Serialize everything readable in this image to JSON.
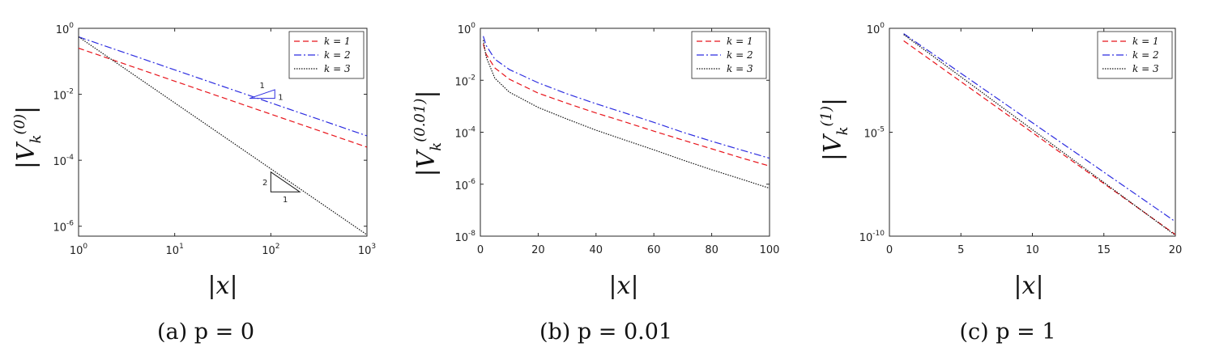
{
  "chart_data": [
    {
      "type": "line",
      "caption": "(a) p = 0",
      "xlabel": "|x|",
      "ylabel": "|V_k^{(0)}|",
      "ylabel_base": "|V",
      "ylabel_sub": "k",
      "ylabel_sup": "(0)",
      "xscale": "log",
      "yscale": "log",
      "xlim": [
        1,
        1000
      ],
      "ylim": [
        5e-07,
        1
      ],
      "xticks": [
        1,
        10,
        100,
        1000
      ],
      "xtick_labels": [
        {
          "base": "10",
          "exp": "0"
        },
        {
          "base": "10",
          "exp": "1"
        },
        {
          "base": "10",
          "exp": "2"
        },
        {
          "base": "10",
          "exp": "3"
        }
      ],
      "yticks": [
        1e-06,
        0.0001,
        0.01,
        1
      ],
      "ytick_labels": [
        {
          "base": "10",
          "exp": "-6"
        },
        {
          "base": "10",
          "exp": "-4"
        },
        {
          "base": "10",
          "exp": "-2"
        },
        {
          "base": "10",
          "exp": "0"
        }
      ],
      "legend": "top-right",
      "series": [
        {
          "name": "k = 1",
          "color": "#e8141b",
          "dash": "7,4",
          "x": [
            1,
            1000
          ],
          "y": [
            0.25,
            0.00025
          ]
        },
        {
          "name": "k = 2",
          "color": "#2c2ce0",
          "dash": "9,3,2,3",
          "x": [
            1,
            1000
          ],
          "y": [
            0.55,
            0.00055
          ]
        },
        {
          "name": "k = 3",
          "color": "#111111",
          "dash": "1.5,1.5",
          "x": [
            1,
            1000
          ],
          "y": [
            0.55,
            5.5e-07
          ]
        }
      ],
      "slope_triangles": [
        {
          "color": "#2c2ce0",
          "rise_label": "1",
          "run_label": "1",
          "x0": 60,
          "x1": 110,
          "y": 0.0075
        },
        {
          "color": "#111111",
          "rise_label": "2",
          "run_label": "1",
          "x0": 100,
          "x1": 200,
          "y": 1.1e-05
        }
      ]
    },
    {
      "type": "line",
      "caption": "(b) p = 0.01",
      "xlabel": "|x|",
      "ylabel": "|V_k^{(0.01)}|",
      "ylabel_base": "|V",
      "ylabel_sub": "k",
      "ylabel_sup": "(0.01)",
      "xscale": "linear",
      "yscale": "log",
      "xlim": [
        0,
        100
      ],
      "ylim": [
        1e-08,
        1
      ],
      "xticks": [
        0,
        20,
        40,
        60,
        80,
        100
      ],
      "xtick_labels": [
        "0",
        "20",
        "40",
        "60",
        "80",
        "100"
      ],
      "yticks": [
        1e-08,
        1e-06,
        0.0001,
        0.01,
        1
      ],
      "ytick_labels": [
        {
          "base": "10",
          "exp": "-8"
        },
        {
          "base": "10",
          "exp": "-6"
        },
        {
          "base": "10",
          "exp": "-4"
        },
        {
          "base": "10",
          "exp": "-2"
        },
        {
          "base": "10",
          "exp": "0"
        }
      ],
      "legend": "top-right",
      "series": [
        {
          "name": "k = 1",
          "color": "#e8141b",
          "dash": "7,4",
          "x": [
            1,
            2,
            5,
            10,
            20,
            30,
            40,
            50,
            60,
            70,
            80,
            90,
            100
          ],
          "y": [
            0.25,
            0.1,
            0.03,
            0.011,
            0.0032,
            0.0013,
            0.00055,
            0.00025,
            0.00011,
            5e-05,
            2.3e-05,
            1.05e-05,
            5e-06
          ]
        },
        {
          "name": "k = 2",
          "color": "#2c2ce0",
          "dash": "9,3,2,3",
          "x": [
            1,
            2,
            5,
            10,
            20,
            30,
            40,
            50,
            60,
            70,
            80,
            90,
            100
          ],
          "y": [
            0.5,
            0.22,
            0.065,
            0.026,
            0.008,
            0.003,
            0.00125,
            0.00055,
            0.00024,
            0.0001,
            4.5e-05,
            2.1e-05,
            1e-05
          ]
        },
        {
          "name": "k = 3",
          "color": "#111111",
          "dash": "1.5,1.5",
          "x": [
            1,
            2,
            5,
            10,
            20,
            30,
            40,
            50,
            60,
            70,
            80,
            90,
            100
          ],
          "y": [
            0.35,
            0.08,
            0.012,
            0.0035,
            0.0009,
            0.00032,
            0.00012,
            5e-05,
            2.1e-05,
            8.5e-06,
            3.6e-06,
            1.6e-06,
            7e-07
          ]
        }
      ]
    },
    {
      "type": "line",
      "caption": "(c) p = 1",
      "xlabel": "|x|",
      "ylabel": "|V_k^{(1)}|",
      "ylabel_base": "|V",
      "ylabel_sub": "k",
      "ylabel_sup": "(1)",
      "xscale": "linear",
      "yscale": "log",
      "xlim": [
        0,
        20
      ],
      "ylim": [
        1e-10,
        1
      ],
      "xticks": [
        0,
        5,
        10,
        15,
        20
      ],
      "xtick_labels": [
        "0",
        "5",
        "10",
        "15",
        "20"
      ],
      "yticks": [
        1e-10,
        1e-05,
        1
      ],
      "ytick_labels": [
        {
          "base": "10",
          "exp": "-10"
        },
        {
          "base": "10",
          "exp": "-5"
        },
        {
          "base": "10",
          "exp": "0"
        }
      ],
      "legend": "top-right",
      "series": [
        {
          "name": "k = 1",
          "color": "#e8141b",
          "dash": "7,4",
          "x": [
            1,
            20
          ],
          "y": [
            0.25,
            1.2e-10
          ]
        },
        {
          "name": "k = 2",
          "color": "#2c2ce0",
          "dash": "9,3,2,3",
          "x": [
            1,
            20
          ],
          "y": [
            0.55,
            5e-10
          ]
        },
        {
          "name": "k = 3",
          "color": "#111111",
          "dash": "1.5,1.5",
          "x": [
            1,
            20
          ],
          "y": [
            0.5,
            1.1e-10
          ]
        }
      ]
    }
  ]
}
